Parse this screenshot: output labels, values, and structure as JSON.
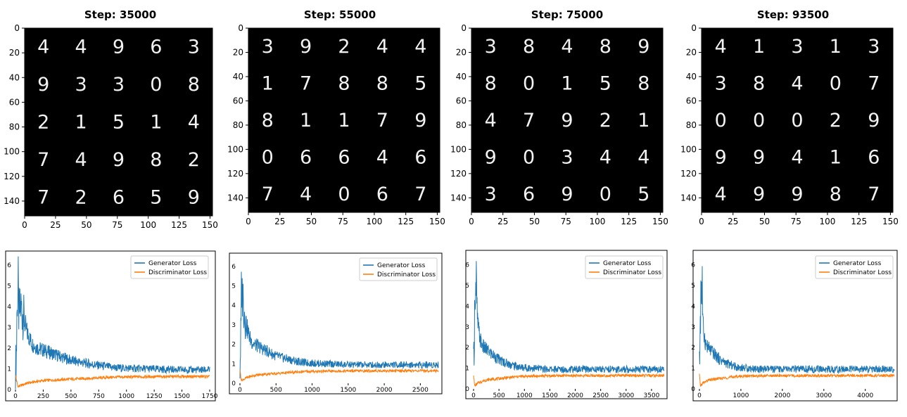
{
  "sample_grids": [
    {
      "title": "Step: 35000",
      "digits": [
        [
          "4",
          "4",
          "9",
          "6",
          "3"
        ],
        [
          "9",
          "3",
          "3",
          "0",
          "8"
        ],
        [
          "2",
          "1",
          "5",
          "1",
          "4"
        ],
        [
          "7",
          "4",
          "9",
          "8",
          "2"
        ],
        [
          "7",
          "2",
          "6",
          "5",
          "9"
        ]
      ]
    },
    {
      "title": "Step: 55000",
      "digits": [
        [
          "3",
          "9",
          "2",
          "4",
          "4"
        ],
        [
          "1",
          "7",
          "8",
          "8",
          "5"
        ],
        [
          "8",
          "1",
          "1",
          "7",
          "9"
        ],
        [
          "0",
          "6",
          "6",
          "4",
          "6"
        ],
        [
          "7",
          "4",
          "0",
          "6",
          "7"
        ]
      ]
    },
    {
      "title": "Step: 75000",
      "digits": [
        [
          "3",
          "8",
          "4",
          "8",
          "9"
        ],
        [
          "8",
          "0",
          "1",
          "5",
          "8"
        ],
        [
          "4",
          "7",
          "9",
          "2",
          "1"
        ],
        [
          "9",
          "0",
          "3",
          "4",
          "4"
        ],
        [
          "3",
          "6",
          "9",
          "0",
          "5"
        ]
      ]
    },
    {
      "title": "Step: 93500",
      "digits": [
        [
          "4",
          "1",
          "3",
          "1",
          "3"
        ],
        [
          "3",
          "8",
          "4",
          "0",
          "7"
        ],
        [
          "0",
          "0",
          "0",
          "2",
          "9"
        ],
        [
          "9",
          "9",
          "4",
          "1",
          "6"
        ],
        [
          "4",
          "9",
          "9",
          "8",
          "7"
        ]
      ]
    }
  ],
  "image_axes": {
    "type": "image",
    "x_ticks": [
      0,
      25,
      50,
      75,
      100,
      125,
      150
    ],
    "y_ticks": [
      0,
      20,
      40,
      60,
      80,
      100,
      120,
      140
    ],
    "xlim": [
      0,
      152
    ],
    "ylim": [
      0,
      152
    ]
  },
  "chart_data": [
    {
      "type": "line",
      "xlim": [
        0,
        1750
      ],
      "ylim": [
        0,
        6.5
      ],
      "x_ticks": [
        0,
        250,
        500,
        750,
        1000,
        1250,
        1500,
        1750
      ],
      "y_ticks": [
        0,
        1,
        2,
        3,
        4,
        5,
        6
      ],
      "legend_position": "top-right",
      "series": [
        {
          "name": "Generator Loss",
          "color": "#1f77b4",
          "x": [
            0,
            20,
            50,
            100,
            150,
            200,
            300,
            500,
            700,
            900,
            1200,
            1500,
            1750
          ],
          "y": [
            0.8,
            3.5,
            4.0,
            2.8,
            2.2,
            2.0,
            1.8,
            1.4,
            1.2,
            1.05,
            1.0,
            0.95,
            0.95
          ]
        },
        {
          "name": "Discriminator Loss",
          "color": "#ff7f0e",
          "x": [
            0,
            20,
            50,
            100,
            150,
            200,
            300,
            500,
            700,
            900,
            1200,
            1500,
            1750
          ],
          "y": [
            0.7,
            0.15,
            0.2,
            0.3,
            0.35,
            0.4,
            0.45,
            0.5,
            0.55,
            0.6,
            0.62,
            0.63,
            0.63
          ]
        }
      ]
    },
    {
      "type": "line",
      "xlim": [
        0,
        2750
      ],
      "ylim": [
        0,
        6.5
      ],
      "x_ticks": [
        0,
        500,
        1000,
        1500,
        2000,
        2500
      ],
      "y_ticks": [
        0,
        1,
        2,
        3,
        4,
        5,
        6
      ],
      "legend_position": "top-right",
      "series": [
        {
          "name": "Generator Loss",
          "color": "#1f77b4",
          "x": [
            0,
            20,
            50,
            100,
            150,
            200,
            300,
            500,
            700,
            900,
            1200,
            1500,
            2000,
            2500,
            2750
          ],
          "y": [
            0.8,
            3.5,
            4.0,
            2.8,
            2.2,
            2.0,
            1.8,
            1.4,
            1.2,
            1.05,
            1.0,
            0.95,
            0.95,
            0.95,
            0.95
          ]
        },
        {
          "name": "Discriminator Loss",
          "color": "#ff7f0e",
          "x": [
            0,
            20,
            50,
            100,
            150,
            200,
            300,
            500,
            700,
            900,
            1200,
            1500,
            2000,
            2500,
            2750
          ],
          "y": [
            0.7,
            0.15,
            0.2,
            0.3,
            0.35,
            0.4,
            0.45,
            0.5,
            0.55,
            0.6,
            0.62,
            0.63,
            0.64,
            0.64,
            0.64
          ]
        }
      ]
    },
    {
      "type": "line",
      "xlim": [
        0,
        3750
      ],
      "ylim": [
        0,
        6.5
      ],
      "x_ticks": [
        0,
        500,
        1000,
        1500,
        2000,
        2500,
        3000,
        3500
      ],
      "y_ticks": [
        0,
        1,
        2,
        3,
        4,
        5,
        6
      ],
      "legend_position": "top-right",
      "series": [
        {
          "name": "Generator Loss",
          "color": "#1f77b4",
          "x": [
            0,
            20,
            50,
            100,
            150,
            200,
            300,
            500,
            700,
            900,
            1200,
            1500,
            2000,
            3000,
            3750
          ],
          "y": [
            0.8,
            3.5,
            4.0,
            2.8,
            2.2,
            2.0,
            1.8,
            1.4,
            1.2,
            1.05,
            1.0,
            0.95,
            0.95,
            0.95,
            0.95
          ]
        },
        {
          "name": "Discriminator Loss",
          "color": "#ff7f0e",
          "x": [
            0,
            20,
            50,
            100,
            150,
            200,
            300,
            500,
            700,
            900,
            1200,
            1500,
            2000,
            3000,
            3750
          ],
          "y": [
            0.7,
            0.15,
            0.2,
            0.3,
            0.35,
            0.4,
            0.45,
            0.5,
            0.55,
            0.6,
            0.62,
            0.63,
            0.64,
            0.64,
            0.64
          ]
        }
      ]
    },
    {
      "type": "line",
      "xlim": [
        0,
        4700
      ],
      "ylim": [
        0,
        6.5
      ],
      "x_ticks": [
        0,
        1000,
        2000,
        3000,
        4000
      ],
      "y_ticks": [
        0,
        1,
        2,
        3,
        4,
        5,
        6
      ],
      "legend_position": "top-right",
      "series": [
        {
          "name": "Generator Loss",
          "color": "#1f77b4",
          "x": [
            0,
            20,
            50,
            100,
            150,
            200,
            300,
            500,
            700,
            900,
            1200,
            1500,
            2000,
            3000,
            4000,
            4700
          ],
          "y": [
            0.8,
            3.5,
            4.0,
            2.8,
            2.2,
            2.0,
            1.8,
            1.4,
            1.2,
            1.05,
            1.0,
            0.95,
            0.95,
            0.95,
            0.95,
            0.95
          ]
        },
        {
          "name": "Discriminator Loss",
          "color": "#ff7f0e",
          "x": [
            0,
            20,
            50,
            100,
            150,
            200,
            300,
            500,
            700,
            900,
            1200,
            1500,
            2000,
            3000,
            4000,
            4700
          ],
          "y": [
            0.7,
            0.15,
            0.2,
            0.3,
            0.35,
            0.4,
            0.45,
            0.5,
            0.55,
            0.6,
            0.62,
            0.63,
            0.64,
            0.64,
            0.64,
            0.64
          ]
        }
      ]
    }
  ]
}
